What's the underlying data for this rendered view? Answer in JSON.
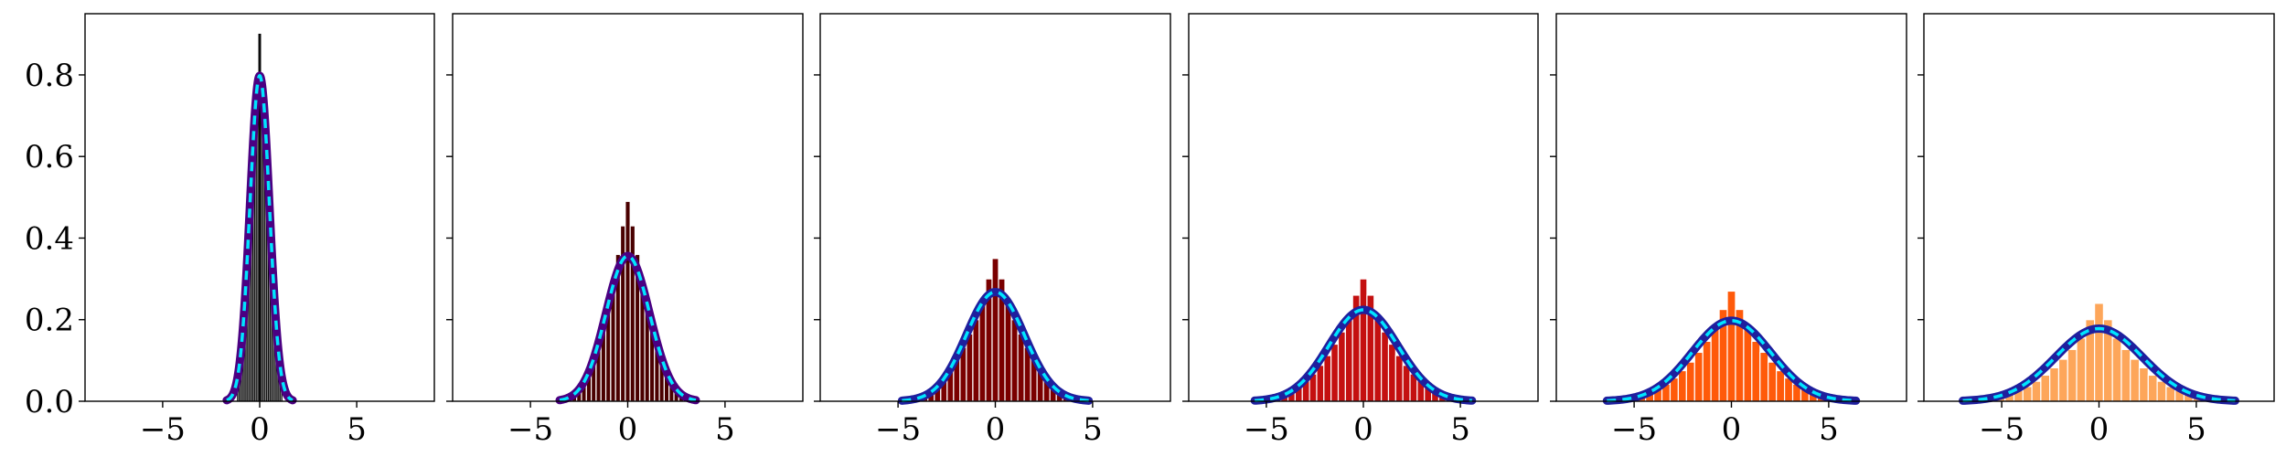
{
  "colors": {
    "background": "#ffffff",
    "axis": "#000000",
    "fit_outer": "#4b0082",
    "fit_outer_alt": "#1f1f9e",
    "fit_dash": "#00e5ff",
    "bar_colors": [
      "#7f7f7f",
      "#4a0000",
      "#7a0000",
      "#c41010",
      "#ff5a0a",
      "#fda65a"
    ],
    "bar_edges": [
      "#000000",
      "#ffffff",
      "#ffffff",
      "#ffffff",
      "#ffffff",
      "#ffffff"
    ]
  },
  "chart_data": [
    {
      "type": "bar",
      "panel": 1,
      "xlim": [
        -9,
        9
      ],
      "ylim": [
        0,
        0.95
      ],
      "xticks": [
        -5,
        0,
        5
      ],
      "xtick_labels": [
        "−5",
        "0",
        "5"
      ],
      "yticks": [
        0.0,
        0.2,
        0.4,
        0.6,
        0.8
      ],
      "ytick_labels": [
        "0.0",
        "0.2",
        "0.4",
        "0.6",
        "0.8"
      ],
      "histogram": {
        "bin_width": 0.1,
        "x": [
          -1.1,
          -1.0,
          -0.9,
          -0.8,
          -0.7,
          -0.6,
          -0.5,
          -0.4,
          -0.3,
          -0.2,
          -0.1,
          0.0,
          0.1,
          0.2,
          0.3,
          0.4,
          0.5,
          0.6,
          0.7,
          0.8,
          0.9,
          1.0,
          1.1
        ],
        "values": [
          0.05,
          0.09,
          0.14,
          0.22,
          0.31,
          0.41,
          0.52,
          0.61,
          0.69,
          0.76,
          0.8,
          0.9,
          0.8,
          0.76,
          0.69,
          0.61,
          0.52,
          0.41,
          0.31,
          0.22,
          0.14,
          0.09,
          0.05
        ]
      },
      "fit": {
        "type": "normal",
        "mean": 0,
        "sd": 0.5,
        "xrange": [
          -1.7,
          1.7
        ]
      }
    },
    {
      "type": "bar",
      "panel": 2,
      "xlim": [
        -9,
        9
      ],
      "ylim": [
        0,
        0.95
      ],
      "xticks": [
        -5,
        0,
        5
      ],
      "xtick_labels": [
        "−5",
        "0",
        "5"
      ],
      "histogram": {
        "bin_width": 0.25,
        "x": [
          -3.25,
          -3.0,
          -2.75,
          -2.5,
          -2.25,
          -2.0,
          -1.75,
          -1.5,
          -1.25,
          -1.0,
          -0.75,
          -0.5,
          -0.25,
          0.0,
          0.25,
          0.5,
          0.75,
          1.0,
          1.25,
          1.5,
          1.75,
          2.0,
          2.25,
          2.5,
          2.75,
          3.0,
          3.25
        ],
        "values": [
          0.005,
          0.01,
          0.02,
          0.03,
          0.05,
          0.07,
          0.1,
          0.14,
          0.19,
          0.24,
          0.3,
          0.36,
          0.43,
          0.49,
          0.43,
          0.36,
          0.3,
          0.24,
          0.19,
          0.14,
          0.1,
          0.07,
          0.05,
          0.03,
          0.02,
          0.01,
          0.005
        ]
      },
      "fit": {
        "type": "normal",
        "mean": 0,
        "sd": 1.12,
        "xrange": [
          -3.5,
          3.5
        ]
      }
    },
    {
      "type": "bar",
      "panel": 3,
      "xlim": [
        -9,
        9
      ],
      "ylim": [
        0,
        0.95
      ],
      "xticks": [
        -5,
        0,
        5
      ],
      "xtick_labels": [
        "−5",
        "0",
        "5"
      ],
      "histogram": {
        "bin_width": 0.33,
        "x": [
          -4.62,
          -4.29,
          -3.96,
          -3.63,
          -3.3,
          -2.97,
          -2.64,
          -2.31,
          -1.98,
          -1.65,
          -1.32,
          -0.99,
          -0.66,
          -0.33,
          0.0,
          0.33,
          0.66,
          0.99,
          1.32,
          1.65,
          1.98,
          2.31,
          2.64,
          2.97,
          3.3,
          3.63,
          3.96,
          4.29,
          4.62
        ],
        "values": [
          0.003,
          0.006,
          0.01,
          0.017,
          0.027,
          0.04,
          0.057,
          0.078,
          0.103,
          0.132,
          0.165,
          0.2,
          0.245,
          0.3,
          0.35,
          0.3,
          0.245,
          0.2,
          0.165,
          0.132,
          0.103,
          0.078,
          0.057,
          0.04,
          0.027,
          0.017,
          0.01,
          0.006,
          0.003
        ]
      },
      "fit": {
        "type": "normal",
        "mean": 0,
        "sd": 1.49,
        "xrange": [
          -4.8,
          4.8
        ]
      }
    },
    {
      "type": "bar",
      "panel": 4,
      "xlim": [
        -9,
        9
      ],
      "ylim": [
        0,
        0.95
      ],
      "xticks": [
        -5,
        0,
        5
      ],
      "xtick_labels": [
        "−5",
        "0",
        "5"
      ],
      "histogram": {
        "bin_width": 0.37,
        "x": [
          -5.18,
          -4.81,
          -4.44,
          -4.07,
          -3.7,
          -3.33,
          -2.96,
          -2.59,
          -2.22,
          -1.85,
          -1.48,
          -1.11,
          -0.74,
          -0.37,
          0.0,
          0.37,
          0.74,
          1.11,
          1.48,
          1.85,
          2.22,
          2.59,
          2.96,
          3.33,
          3.7,
          4.07,
          4.44,
          4.81,
          5.18
        ],
        "values": [
          0.003,
          0.006,
          0.01,
          0.016,
          0.025,
          0.036,
          0.05,
          0.067,
          0.088,
          0.112,
          0.14,
          0.17,
          0.205,
          0.26,
          0.3,
          0.26,
          0.205,
          0.17,
          0.14,
          0.112,
          0.088,
          0.067,
          0.05,
          0.036,
          0.025,
          0.016,
          0.01,
          0.006,
          0.003
        ]
      },
      "fit": {
        "type": "normal",
        "mean": 0,
        "sd": 1.78,
        "xrange": [
          -5.6,
          5.6
        ]
      }
    },
    {
      "type": "bar",
      "panel": 5,
      "xlim": [
        -9,
        9
      ],
      "ylim": [
        0,
        0.95
      ],
      "xticks": [
        -5,
        0,
        5
      ],
      "xtick_labels": [
        "−5",
        "0",
        "5"
      ],
      "histogram": {
        "bin_width": 0.42,
        "x": [
          -5.88,
          -5.46,
          -5.04,
          -4.62,
          -4.2,
          -3.78,
          -3.36,
          -2.94,
          -2.52,
          -2.1,
          -1.68,
          -1.26,
          -0.84,
          -0.42,
          0.0,
          0.42,
          0.84,
          1.26,
          1.68,
          2.1,
          2.52,
          2.94,
          3.36,
          3.78,
          4.2,
          4.62,
          5.04,
          5.46,
          5.88
        ],
        "values": [
          0.003,
          0.005,
          0.009,
          0.014,
          0.021,
          0.03,
          0.042,
          0.057,
          0.075,
          0.096,
          0.12,
          0.147,
          0.18,
          0.225,
          0.27,
          0.225,
          0.18,
          0.147,
          0.12,
          0.096,
          0.075,
          0.057,
          0.042,
          0.03,
          0.021,
          0.014,
          0.009,
          0.005,
          0.003
        ]
      },
      "fit": {
        "type": "normal",
        "mean": 0,
        "sd": 2.02,
        "xrange": [
          -6.4,
          6.4
        ]
      }
    },
    {
      "type": "bar",
      "panel": 6,
      "xlim": [
        -9,
        9
      ],
      "ylim": [
        0,
        0.95
      ],
      "xticks": [
        -5,
        0,
        5
      ],
      "xtick_labels": [
        "−5",
        "0",
        "5"
      ],
      "histogram": {
        "bin_width": 0.46,
        "x": [
          -6.44,
          -5.98,
          -5.52,
          -5.06,
          -4.6,
          -4.14,
          -3.68,
          -3.22,
          -2.76,
          -2.3,
          -1.84,
          -1.38,
          -0.92,
          -0.46,
          0.0,
          0.46,
          0.92,
          1.38,
          1.84,
          2.3,
          2.76,
          3.22,
          3.68,
          4.14,
          4.6,
          5.06,
          5.52,
          5.98,
          6.44
        ],
        "values": [
          0.003,
          0.005,
          0.008,
          0.012,
          0.018,
          0.026,
          0.036,
          0.049,
          0.064,
          0.082,
          0.103,
          0.127,
          0.155,
          0.2,
          0.24,
          0.2,
          0.155,
          0.127,
          0.103,
          0.082,
          0.064,
          0.049,
          0.036,
          0.026,
          0.018,
          0.012,
          0.008,
          0.005,
          0.003
        ]
      },
      "fit": {
        "type": "normal",
        "mean": 0,
        "sd": 2.24,
        "xrange": [
          -7.0,
          7.0
        ]
      }
    }
  ]
}
